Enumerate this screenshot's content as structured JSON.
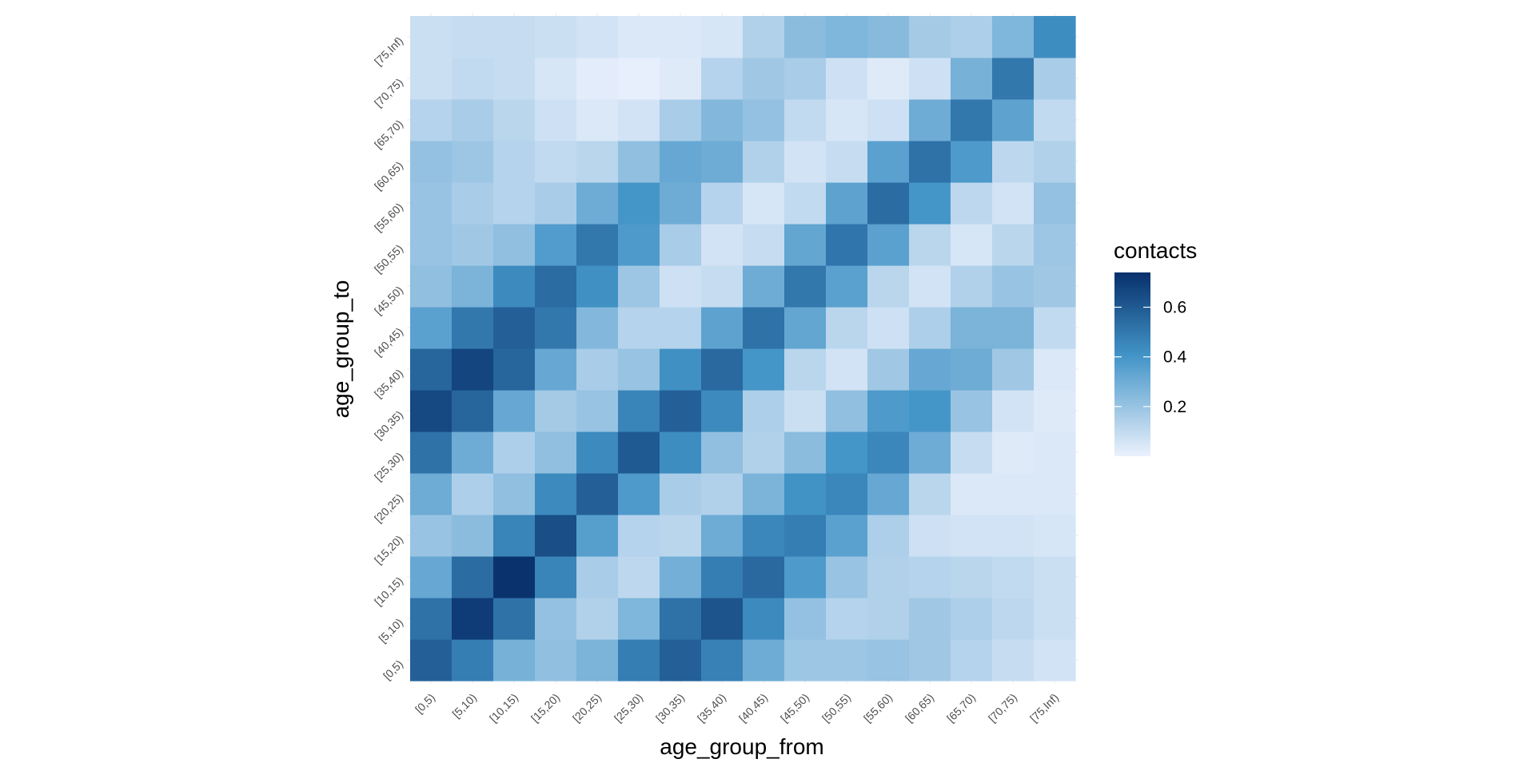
{
  "chart_data": {
    "type": "heatmap",
    "xlabel": "age_group_from",
    "ylabel": "age_group_to",
    "x_categories": [
      "[0,5)",
      "[5,10)",
      "[10,15)",
      "[15,20)",
      "[20,25)",
      "[25,30)",
      "[30,35)",
      "[35,40)",
      "[40,45)",
      "[45,50)",
      "[50,55)",
      "[55,60)",
      "[60,65)",
      "[65,70)",
      "[70,75)",
      "[75,Inf)"
    ],
    "y_categories": [
      "[0,5)",
      "[5,10)",
      "[10,15)",
      "[15,20)",
      "[20,25)",
      "[25,30)",
      "[30,35)",
      "[35,40)",
      "[40,45)",
      "[45,50)",
      "[50,55)",
      "[55,60)",
      "[60,65)",
      "[65,70)",
      "[70,75)",
      "[75,Inf)"
    ],
    "values": [
      [
        0.58,
        0.48,
        0.28,
        0.22,
        0.27,
        0.48,
        0.58,
        0.47,
        0.3,
        0.19,
        0.19,
        0.2,
        0.18,
        0.13,
        0.09,
        0.06
      ],
      [
        0.52,
        0.7,
        0.52,
        0.21,
        0.14,
        0.26,
        0.52,
        0.62,
        0.44,
        0.21,
        0.13,
        0.14,
        0.18,
        0.15,
        0.11,
        0.08
      ],
      [
        0.32,
        0.54,
        0.73,
        0.46,
        0.16,
        0.11,
        0.29,
        0.48,
        0.55,
        0.38,
        0.2,
        0.14,
        0.13,
        0.12,
        0.1,
        0.08
      ],
      [
        0.2,
        0.23,
        0.46,
        0.64,
        0.36,
        0.13,
        0.12,
        0.3,
        0.45,
        0.48,
        0.35,
        0.15,
        0.07,
        0.06,
        0.06,
        0.05
      ],
      [
        0.3,
        0.15,
        0.22,
        0.44,
        0.58,
        0.38,
        0.16,
        0.14,
        0.27,
        0.41,
        0.45,
        0.32,
        0.12,
        0.04,
        0.04,
        0.04
      ],
      [
        0.52,
        0.3,
        0.15,
        0.22,
        0.44,
        0.6,
        0.43,
        0.22,
        0.14,
        0.23,
        0.4,
        0.45,
        0.3,
        0.09,
        0.03,
        0.04
      ],
      [
        0.66,
        0.56,
        0.32,
        0.17,
        0.2,
        0.46,
        0.58,
        0.44,
        0.15,
        0.08,
        0.22,
        0.38,
        0.4,
        0.2,
        0.06,
        0.03
      ],
      [
        0.56,
        0.67,
        0.56,
        0.32,
        0.16,
        0.2,
        0.42,
        0.55,
        0.4,
        0.12,
        0.06,
        0.18,
        0.32,
        0.3,
        0.18,
        0.04
      ],
      [
        0.35,
        0.5,
        0.58,
        0.5,
        0.25,
        0.13,
        0.13,
        0.34,
        0.52,
        0.33,
        0.12,
        0.07,
        0.15,
        0.27,
        0.27,
        0.1
      ],
      [
        0.22,
        0.27,
        0.44,
        0.54,
        0.42,
        0.19,
        0.07,
        0.09,
        0.3,
        0.5,
        0.35,
        0.12,
        0.06,
        0.14,
        0.2,
        0.18
      ],
      [
        0.2,
        0.18,
        0.22,
        0.37,
        0.5,
        0.38,
        0.16,
        0.06,
        0.09,
        0.33,
        0.51,
        0.35,
        0.12,
        0.05,
        0.12,
        0.19
      ],
      [
        0.2,
        0.16,
        0.13,
        0.16,
        0.3,
        0.4,
        0.3,
        0.13,
        0.05,
        0.1,
        0.34,
        0.54,
        0.4,
        0.11,
        0.06,
        0.21
      ],
      [
        0.21,
        0.19,
        0.13,
        0.1,
        0.12,
        0.22,
        0.32,
        0.3,
        0.14,
        0.06,
        0.09,
        0.35,
        0.52,
        0.38,
        0.11,
        0.14
      ],
      [
        0.13,
        0.16,
        0.12,
        0.07,
        0.04,
        0.06,
        0.16,
        0.25,
        0.21,
        0.1,
        0.05,
        0.07,
        0.3,
        0.5,
        0.34,
        0.1
      ],
      [
        0.08,
        0.1,
        0.09,
        0.05,
        0.02,
        0.01,
        0.03,
        0.13,
        0.18,
        0.16,
        0.07,
        0.03,
        0.07,
        0.28,
        0.5,
        0.16
      ],
      [
        0.08,
        0.09,
        0.09,
        0.08,
        0.06,
        0.04,
        0.04,
        0.05,
        0.14,
        0.23,
        0.26,
        0.24,
        0.17,
        0.15,
        0.26,
        0.43
      ]
    ],
    "legend": {
      "title": "contacts",
      "position": "right",
      "breaks": [
        0.2,
        0.4,
        0.6
      ],
      "break_labels": [
        "0.2",
        "0.4",
        "0.6"
      ],
      "range": [
        0,
        0.74
      ],
      "color_low": "#ebf1fd",
      "color_mid": "#4294c7",
      "color_high": "#08306b"
    },
    "grid": true
  }
}
